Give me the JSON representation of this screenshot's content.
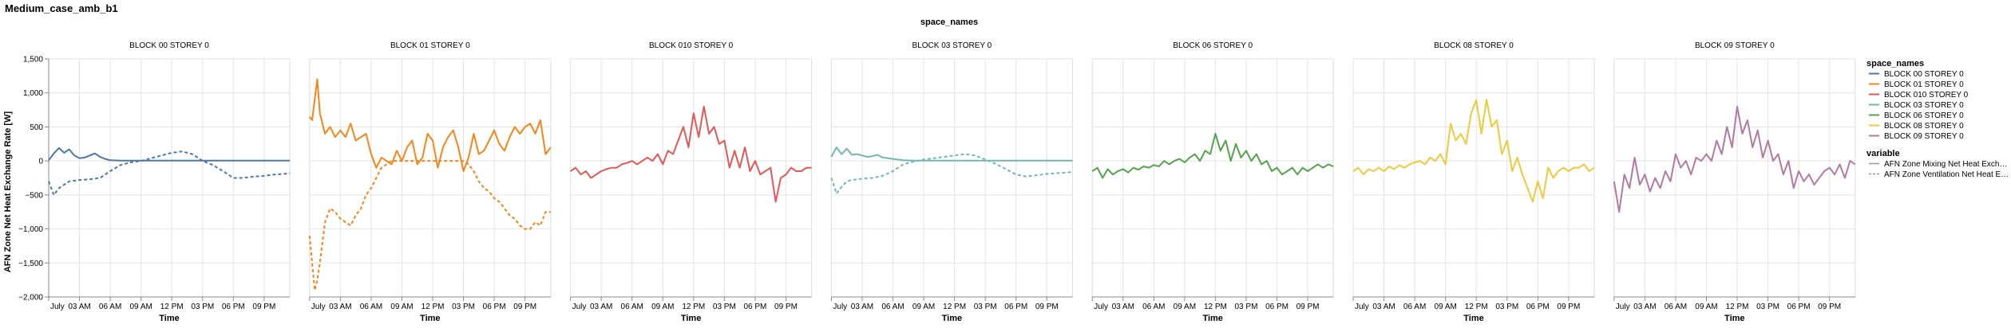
{
  "title": "Medium_case_amb_b1",
  "facet_header": "space_names",
  "chart_data": {
    "type": "line",
    "title": "Medium_case_amb_b1",
    "facet_field": "space_names",
    "xlabel": "Time",
    "ylabel": "AFN Zone Net Heat Exchange Rate [W]",
    "ylim": [
      -2000,
      1500
    ],
    "yticks": [
      -2000,
      -1500,
      -1000,
      -500,
      0,
      500,
      1000,
      1500
    ],
    "ytick_labels": [
      "−2,000",
      "−1,500",
      "−1,000",
      "−500",
      "0",
      "500",
      "1,000",
      "1,500"
    ],
    "x_unit": "hours since midnight, July 1",
    "xlim": [
      0,
      23.5
    ],
    "xticks": [
      0,
      3,
      6,
      9,
      12,
      15,
      18,
      21
    ],
    "xtick_labels": [
      "July",
      "03 AM",
      "06 AM",
      "09 AM",
      "12 PM",
      "03 PM",
      "06 PM",
      "09 PM"
    ],
    "grid": true,
    "legend_position": "right",
    "legend": {
      "space_title": "space_names",
      "variable_title": "variable",
      "spaces": [
        "BLOCK 00 STOREY 0",
        "BLOCK 01 STOREY 0",
        "BLOCK 010 STOREY 0",
        "BLOCK 03 STOREY 0",
        "BLOCK 06 STOREY 0",
        "BLOCK 08 STOREY 0",
        "BLOCK 09 STOREY 0"
      ],
      "variables": [
        "AFN Zone Mixing Net Heat Exch…",
        "AFN Zone Ventilation Net Heat E…"
      ]
    },
    "panels": [
      {
        "name": "BLOCK 00 STOREY 0",
        "color": "#4c78a8",
        "series": [
          {
            "variable": "AFN Zone Mixing Net Heat Exchange",
            "dash": false,
            "x": [
              0,
              0.5,
              1,
              1.5,
              2,
              2.5,
              3,
              3.5,
              4,
              4.5,
              5,
              5.5,
              6,
              7,
              8,
              9,
              10,
              11,
              12,
              13,
              14,
              15,
              16,
              17,
              18,
              19,
              20,
              21,
              22,
              23,
              23.5
            ],
            "y": [
              10,
              110,
              190,
              120,
              170,
              80,
              40,
              50,
              80,
              110,
              60,
              30,
              10,
              5,
              5,
              5,
              5,
              5,
              5,
              5,
              5,
              5,
              5,
              5,
              5,
              5,
              5,
              5,
              5,
              5,
              5
            ]
          },
          {
            "variable": "AFN Zone Ventilation Net Heat Exchange",
            "dash": true,
            "x": [
              0,
              0.5,
              1,
              1.5,
              2,
              3,
              4,
              5,
              6,
              7,
              8,
              9,
              10,
              11,
              12,
              13,
              14,
              15,
              16,
              17,
              18,
              19,
              20,
              21,
              22,
              23,
              23.5
            ],
            "y": [
              -300,
              -500,
              -400,
              -350,
              -300,
              -280,
              -270,
              -250,
              -150,
              -60,
              -20,
              0,
              40,
              80,
              120,
              140,
              100,
              0,
              -60,
              -150,
              -250,
              -250,
              -230,
              -220,
              -200,
              -190,
              -180
            ]
          }
        ]
      },
      {
        "name": "BLOCK 01 STOREY 0",
        "color": "#f58518",
        "series": [
          {
            "variable": "AFN Zone Mixing Net Heat Exchange",
            "dash": false,
            "x": [
              0,
              0.25,
              0.5,
              0.75,
              1,
              1.5,
              2,
              2.5,
              3,
              3.5,
              4,
              4.5,
              5,
              5.5,
              6,
              6.5,
              7,
              7.5,
              8,
              8.5,
              9,
              9.5,
              10,
              10.5,
              11,
              11.5,
              12,
              12.5,
              13,
              13.5,
              14,
              14.5,
              15,
              15.5,
              16,
              16.5,
              17,
              17.5,
              18,
              18.5,
              19,
              19.5,
              20,
              20.5,
              21,
              21.5,
              22,
              22.5,
              23,
              23.5
            ],
            "y": [
              650,
              600,
              900,
              1200,
              700,
              400,
              500,
              350,
              450,
              350,
              550,
              300,
              350,
              400,
              100,
              -100,
              50,
              0,
              -50,
              150,
              0,
              200,
              300,
              -50,
              50,
              400,
              300,
              -100,
              200,
              350,
              450,
              200,
              -150,
              50,
              400,
              100,
              150,
              300,
              450,
              250,
              150,
              350,
              500,
              400,
              500,
              550,
              400,
              600,
              100,
              200
            ]
          },
          {
            "variable": "AFN Zone Ventilation Net Heat Exchange",
            "dash": true,
            "x": [
              0,
              0.25,
              0.5,
              0.75,
              1,
              1.5,
              2,
              2.5,
              3,
              3.5,
              4,
              4.5,
              5,
              5.5,
              6,
              6.5,
              7,
              7.5,
              8,
              9,
              10,
              11,
              12,
              13,
              14,
              15,
              15.5,
              16,
              16.5,
              17,
              17.5,
              18,
              18.5,
              19,
              19.5,
              20,
              20.5,
              21,
              21.5,
              22,
              22.5,
              23,
              23.5
            ],
            "y": [
              -1100,
              -1500,
              -1900,
              -1750,
              -1500,
              -900,
              -700,
              -750,
              -850,
              -900,
              -950,
              -800,
              -700,
              -500,
              -400,
              -250,
              -100,
              -50,
              0,
              0,
              0,
              0,
              0,
              0,
              0,
              0,
              -50,
              -150,
              -300,
              -400,
              -450,
              -550,
              -600,
              -700,
              -800,
              -850,
              -950,
              -1000,
              -1000,
              -900,
              -950,
              -750,
              -750
            ]
          }
        ]
      },
      {
        "name": "BLOCK 010 STOREY 0",
        "color": "#e45756",
        "series": [
          {
            "variable": "AFN Zone Mixing Net Heat Exchange",
            "dash": false,
            "x": [
              0,
              0.5,
              1,
              1.5,
              2,
              2.5,
              3,
              3.5,
              4,
              4.5,
              5,
              5.5,
              6,
              6.5,
              7,
              7.5,
              8,
              8.5,
              9,
              9.5,
              10,
              10.5,
              11,
              11.5,
              12,
              12.5,
              13,
              13.5,
              14,
              14.5,
              15,
              15.5,
              16,
              16.5,
              17,
              17.5,
              18,
              18.5,
              19,
              19.5,
              20,
              20.5,
              21,
              21.5,
              22,
              22.5,
              23,
              23.5
            ],
            "y": [
              -150,
              -100,
              -200,
              -150,
              -250,
              -200,
              -150,
              -120,
              -100,
              -100,
              -50,
              -30,
              0,
              -50,
              0,
              50,
              0,
              100,
              -50,
              150,
              100,
              300,
              500,
              200,
              700,
              350,
              800,
              400,
              500,
              250,
              300,
              -100,
              150,
              -100,
              200,
              -150,
              0,
              -200,
              -150,
              -100,
              -600,
              -250,
              -200,
              -100,
              -150,
              -150,
              -100,
              -100
            ]
          }
        ]
      },
      {
        "name": "BLOCK 03 STOREY 0",
        "color": "#72b7b2",
        "series": [
          {
            "variable": "AFN Zone Mixing Net Heat Exchange",
            "dash": false,
            "x": [
              0,
              0.5,
              1,
              1.5,
              2,
              2.5,
              3,
              3.5,
              4,
              4.5,
              5,
              6,
              7,
              8,
              9,
              10,
              11,
              12,
              13,
              14,
              15,
              16,
              17,
              18,
              19,
              20,
              21,
              22,
              23,
              23.5
            ],
            "y": [
              60,
              200,
              100,
              180,
              90,
              100,
              80,
              60,
              70,
              90,
              50,
              30,
              10,
              5,
              5,
              5,
              5,
              5,
              5,
              5,
              5,
              5,
              5,
              5,
              5,
              5,
              5,
              5,
              5,
              5
            ]
          },
          {
            "variable": "AFN Zone Ventilation Net Heat Exchange",
            "dash": true,
            "x": [
              0,
              0.5,
              1,
              1.5,
              2,
              3,
              4,
              5,
              6,
              7,
              8,
              9,
              10,
              11,
              12,
              13,
              14,
              15,
              16,
              17,
              18,
              19,
              20,
              21,
              22,
              23,
              23.5
            ],
            "y": [
              -250,
              -480,
              -380,
              -300,
              -280,
              -260,
              -250,
              -220,
              -150,
              -50,
              -10,
              20,
              40,
              60,
              80,
              100,
              80,
              20,
              -40,
              -120,
              -200,
              -230,
              -210,
              -190,
              -180,
              -170,
              -160
            ]
          }
        ]
      },
      {
        "name": "BLOCK 06 STOREY 0",
        "color": "#54a24b",
        "series": [
          {
            "variable": "AFN Zone Mixing Net Heat Exchange",
            "dash": false,
            "x": [
              0,
              0.5,
              1,
              1.5,
              2,
              2.5,
              3,
              3.5,
              4,
              4.5,
              5,
              5.5,
              6,
              6.5,
              7,
              7.5,
              8,
              8.5,
              9,
              9.5,
              10,
              10.5,
              11,
              11.5,
              12,
              12.5,
              13,
              13.5,
              14,
              14.5,
              15,
              15.5,
              16,
              16.5,
              17,
              17.5,
              18,
              18.5,
              19,
              19.5,
              20,
              20.5,
              21,
              21.5,
              22,
              22.5,
              23,
              23.5
            ],
            "y": [
              -150,
              -100,
              -250,
              -120,
              -200,
              -150,
              -120,
              -170,
              -100,
              -130,
              -80,
              -100,
              -60,
              -80,
              0,
              -50,
              0,
              30,
              -20,
              50,
              100,
              0,
              150,
              100,
              400,
              150,
              300,
              0,
              250,
              50,
              150,
              0,
              100,
              -50,
              0,
              -150,
              -100,
              -200,
              -150,
              -100,
              -200,
              -100,
              -150,
              -100,
              -50,
              -100,
              -50,
              -80
            ]
          }
        ]
      },
      {
        "name": "BLOCK 08 STOREY 0",
        "color": "#eeca3b",
        "series": [
          {
            "variable": "AFN Zone Mixing Net Heat Exchange",
            "dash": false,
            "x": [
              0,
              0.5,
              1,
              1.5,
              2,
              2.5,
              3,
              3.5,
              4,
              4.5,
              5,
              5.5,
              6,
              6.5,
              7,
              7.5,
              8,
              8.5,
              9,
              9.5,
              10,
              10.5,
              11,
              11.5,
              12,
              12.5,
              13,
              13.5,
              14,
              14.5,
              15,
              15.5,
              16,
              16.5,
              17,
              17.5,
              18,
              18.5,
              19,
              19.5,
              20,
              20.5,
              21,
              21.5,
              22,
              22.5,
              23,
              23.5
            ],
            "y": [
              -150,
              -100,
              -200,
              -120,
              -150,
              -100,
              -150,
              -80,
              -120,
              -60,
              -100,
              -50,
              -20,
              0,
              -50,
              50,
              0,
              100,
              -50,
              550,
              300,
              400,
              250,
              700,
              900,
              400,
              900,
              500,
              600,
              100,
              300,
              -150,
              50,
              -200,
              -400,
              -600,
              -300,
              -550,
              -100,
              -250,
              -150,
              -100,
              -150,
              -100,
              -100,
              -50,
              -150,
              -100
            ]
          }
        ]
      },
      {
        "name": "BLOCK 09 STOREY 0",
        "color": "#b279a2",
        "series": [
          {
            "variable": "AFN Zone Mixing Net Heat Exchange",
            "dash": false,
            "x": [
              0,
              0.5,
              1,
              1.5,
              2,
              2.5,
              3,
              3.5,
              4,
              4.5,
              5,
              5.5,
              6,
              6.5,
              7,
              7.5,
              8,
              8.5,
              9,
              9.5,
              10,
              10.5,
              11,
              11.5,
              12,
              12.5,
              13,
              13.5,
              14,
              14.5,
              15,
              15.5,
              16,
              16.5,
              17,
              17.5,
              18,
              18.5,
              19,
              19.5,
              20,
              20.5,
              21,
              21.5,
              22,
              22.5,
              23,
              23.5
            ],
            "y": [
              -300,
              -750,
              -200,
              -400,
              50,
              -350,
              -200,
              -450,
              -250,
              -400,
              -150,
              -300,
              100,
              -100,
              0,
              -200,
              50,
              0,
              100,
              0,
              300,
              100,
              500,
              200,
              800,
              400,
              600,
              200,
              450,
              50,
              300,
              0,
              100,
              -200,
              0,
              -400,
              -150,
              -300,
              -200,
              -350,
              -250,
              -150,
              -100,
              -200,
              -50,
              -250,
              0,
              -50
            ]
          }
        ]
      }
    ]
  }
}
